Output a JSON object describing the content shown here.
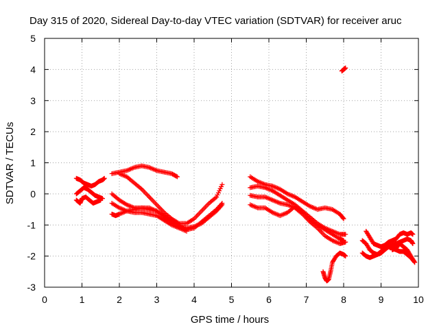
{
  "chart_data": {
    "type": "scatter",
    "title": "Day 315 of 2020, Sidereal Day-to-day VTEC variation (SDTVAR) for receiver aruc",
    "xlabel": "GPS time / hours",
    "ylabel": "SDTVAR / TECUs",
    "xlim": [
      0,
      10
    ],
    "ylim": [
      -3,
      5
    ],
    "xticks": [
      0,
      1,
      2,
      3,
      4,
      5,
      6,
      7,
      8,
      9,
      10
    ],
    "yticks": [
      -3,
      -2,
      -1,
      0,
      1,
      2,
      3,
      4,
      5
    ],
    "grid": true,
    "marker": "+",
    "color": "#ff0000",
    "series": [
      {
        "name": "s1",
        "x": [
          0.85,
          0.95,
          1.05,
          1.15,
          1.25,
          1.35,
          1.45,
          1.55,
          1.6
        ],
        "y": [
          0.5,
          0.45,
          0.35,
          0.3,
          0.25,
          0.3,
          0.4,
          0.45,
          0.5
        ]
      },
      {
        "name": "s2",
        "x": [
          0.85,
          0.95,
          1.05,
          1.15,
          1.25,
          1.35,
          1.45,
          1.55
        ],
        "y": [
          0.0,
          0.1,
          0.2,
          0.15,
          0.05,
          -0.05,
          -0.1,
          -0.15
        ]
      },
      {
        "name": "s3",
        "x": [
          0.85,
          0.95,
          1.0,
          1.1,
          1.2,
          1.3,
          1.4,
          1.5
        ],
        "y": [
          -0.2,
          -0.3,
          -0.15,
          -0.1,
          -0.2,
          -0.3,
          -0.25,
          -0.2
        ]
      },
      {
        "name": "s4",
        "x": [
          1.8,
          2.0,
          2.2,
          2.4,
          2.6,
          2.8,
          3.0,
          3.2,
          3.4,
          3.55
        ],
        "y": [
          0.65,
          0.7,
          0.75,
          0.85,
          0.9,
          0.85,
          0.75,
          0.7,
          0.65,
          0.55
        ]
      },
      {
        "name": "s5",
        "x": [
          2.0,
          2.2,
          2.4,
          2.6,
          2.8,
          3.0,
          3.2,
          3.4,
          3.6,
          3.8,
          4.0,
          4.2,
          4.4,
          4.6,
          4.75
        ],
        "y": [
          0.65,
          0.55,
          0.35,
          0.15,
          -0.1,
          -0.35,
          -0.6,
          -0.8,
          -0.95,
          -0.95,
          -0.8,
          -0.55,
          -0.3,
          -0.1,
          0.3
        ]
      },
      {
        "name": "s6",
        "x": [
          1.8,
          1.9,
          2.0,
          2.2,
          2.4,
          2.6,
          2.8,
          3.0,
          3.2,
          3.4,
          3.6,
          3.8,
          4.0,
          4.2,
          4.4,
          4.6,
          4.75
        ],
        "y": [
          -0.65,
          -0.7,
          -0.65,
          -0.55,
          -0.5,
          -0.45,
          -0.45,
          -0.55,
          -0.75,
          -0.9,
          -1.05,
          -1.1,
          -1.05,
          -0.95,
          -0.75,
          -0.55,
          -0.35
        ]
      },
      {
        "name": "s7",
        "x": [
          1.8,
          2.0,
          2.2,
          2.4,
          2.6,
          2.8,
          3.0,
          3.2,
          3.4,
          3.6,
          3.8,
          4.0,
          4.2,
          4.4,
          4.6,
          4.75
        ],
        "y": [
          0.0,
          -0.2,
          -0.35,
          -0.45,
          -0.45,
          -0.5,
          -0.55,
          -0.7,
          -0.85,
          -1.0,
          -1.15,
          -1.1,
          -0.9,
          -0.7,
          -0.5,
          -0.3
        ]
      },
      {
        "name": "s8",
        "x": [
          1.8,
          2.0,
          2.2,
          2.4,
          2.6,
          2.8,
          3.0,
          3.2,
          3.4,
          3.6,
          3.8
        ],
        "y": [
          -0.3,
          -0.45,
          -0.55,
          -0.6,
          -0.6,
          -0.65,
          -0.7,
          -0.85,
          -1.0,
          -1.1,
          -1.2
        ]
      },
      {
        "name": "s9",
        "x": [
          5.5,
          5.7,
          5.9,
          6.1,
          6.3,
          6.5,
          6.7,
          6.9,
          7.1,
          7.3,
          7.5,
          7.7,
          7.9,
          8.0
        ],
        "y": [
          0.55,
          0.4,
          0.3,
          0.25,
          0.15,
          0.0,
          -0.1,
          -0.25,
          -0.4,
          -0.5,
          -0.45,
          -0.5,
          -0.65,
          -0.8
        ]
      },
      {
        "name": "s10",
        "x": [
          5.5,
          5.7,
          5.9,
          6.1,
          6.3,
          6.5,
          6.7,
          6.9,
          7.1,
          7.3,
          7.5,
          7.7,
          7.9,
          8.05
        ],
        "y": [
          0.2,
          0.25,
          0.2,
          0.1,
          -0.05,
          -0.2,
          -0.35,
          -0.55,
          -0.75,
          -0.95,
          -1.1,
          -1.2,
          -1.3,
          -1.3
        ]
      },
      {
        "name": "s11",
        "x": [
          5.5,
          5.7,
          5.9,
          6.1,
          6.3,
          6.5,
          6.7,
          6.9,
          7.1,
          7.3,
          7.5,
          7.7,
          7.9,
          8.05
        ],
        "y": [
          -0.05,
          -0.1,
          -0.1,
          -0.2,
          -0.3,
          -0.35,
          -0.45,
          -0.65,
          -0.9,
          -1.1,
          -1.35,
          -1.5,
          -1.6,
          -1.55
        ]
      },
      {
        "name": "s12",
        "x": [
          5.5,
          5.7,
          5.9,
          6.1,
          6.3,
          6.5,
          6.7,
          6.9,
          7.1,
          7.3,
          7.5,
          7.7,
          7.9,
          8.0
        ],
        "y": [
          -0.35,
          -0.45,
          -0.45,
          -0.6,
          -0.7,
          -0.6,
          -0.4,
          -0.6,
          -0.85,
          -1.0,
          -1.15,
          -1.3,
          -1.45,
          -1.5
        ]
      },
      {
        "name": "s13",
        "x": [
          7.45,
          7.5,
          7.55,
          7.6,
          7.65,
          7.7,
          7.8,
          7.9,
          8.0,
          8.05
        ],
        "y": [
          -2.5,
          -2.7,
          -2.8,
          -2.75,
          -2.5,
          -2.2,
          -2.0,
          -1.9,
          -1.95,
          -2.0
        ]
      },
      {
        "name": "s14",
        "x": [
          7.95,
          8.0,
          8.05
        ],
        "y": [
          3.95,
          4.0,
          4.05
        ]
      },
      {
        "name": "s15",
        "x": [
          8.5,
          8.6,
          8.7,
          8.8,
          8.9,
          9.0,
          9.1,
          9.2,
          9.3,
          9.4,
          9.5,
          9.6,
          9.7,
          9.8,
          9.85
        ],
        "y": [
          -1.5,
          -1.6,
          -1.8,
          -1.9,
          -1.95,
          -1.9,
          -1.8,
          -1.7,
          -1.65,
          -1.6,
          -1.55,
          -1.5,
          -1.45,
          -1.5,
          -1.6
        ]
      },
      {
        "name": "s16",
        "x": [
          8.5,
          8.6,
          8.7,
          8.8,
          8.9,
          9.0,
          9.1,
          9.2,
          9.3,
          9.4,
          9.5,
          9.6,
          9.7,
          9.8,
          9.9
        ],
        "y": [
          -1.9,
          -2.0,
          -2.05,
          -2.0,
          -1.95,
          -1.85,
          -1.75,
          -1.7,
          -1.75,
          -1.8,
          -1.85,
          -1.85,
          -1.95,
          -2.05,
          -2.2
        ]
      },
      {
        "name": "s17",
        "x": [
          8.6,
          8.7,
          8.8,
          8.9,
          9.0,
          9.1,
          9.2,
          9.3,
          9.4,
          9.5,
          9.6,
          9.7,
          9.8,
          9.85
        ],
        "y": [
          -1.2,
          -1.4,
          -1.6,
          -1.65,
          -1.7,
          -1.65,
          -1.55,
          -1.5,
          -1.45,
          -1.3,
          -1.25,
          -1.3,
          -1.25,
          -1.3
        ]
      },
      {
        "name": "s18",
        "x": [
          9.3,
          9.4,
          9.5,
          9.6,
          9.7,
          9.8,
          9.9
        ],
        "y": [
          -1.8,
          -1.75,
          -1.6,
          -1.7,
          -1.8,
          -2.0,
          -2.2
        ]
      }
    ]
  }
}
